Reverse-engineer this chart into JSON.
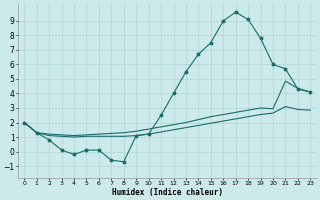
{
  "xlabel": "Humidex (Indice chaleur)",
  "background_color": "#cdeaea",
  "line_color": "#1a6b6b",
  "grid_color": "#afd4d4",
  "xlim": [
    -0.5,
    23.5
  ],
  "ylim": [
    -1.8,
    10.2
  ],
  "xticks": [
    0,
    1,
    2,
    3,
    4,
    5,
    6,
    7,
    8,
    9,
    10,
    11,
    12,
    13,
    14,
    15,
    16,
    17,
    18,
    19,
    20,
    21,
    22,
    23
  ],
  "yticks": [
    -1,
    0,
    1,
    2,
    3,
    4,
    5,
    6,
    7,
    8,
    9
  ],
  "series1_x": [
    0,
    1,
    2,
    3,
    4,
    5,
    6,
    7,
    8,
    9,
    10,
    11,
    12,
    13,
    14,
    15,
    16,
    17,
    18,
    19,
    20,
    21,
    22,
    23
  ],
  "series1_y": [
    2.0,
    1.3,
    0.8,
    0.1,
    -0.2,
    0.1,
    0.1,
    -0.6,
    -0.7,
    1.1,
    1.2,
    2.5,
    4.0,
    5.5,
    6.7,
    7.5,
    9.0,
    9.6,
    9.1,
    7.8,
    6.0,
    5.7,
    4.3,
    4.1
  ],
  "series2_x": [
    0,
    1,
    2,
    3,
    4,
    5,
    6,
    7,
    8,
    9,
    10,
    11,
    12,
    13,
    14,
    15,
    16,
    17,
    18,
    19,
    20,
    21,
    22,
    23
  ],
  "series2_y": [
    2.0,
    1.3,
    1.2,
    1.15,
    1.1,
    1.15,
    1.2,
    1.25,
    1.3,
    1.4,
    1.55,
    1.7,
    1.85,
    2.0,
    2.2,
    2.4,
    2.55,
    2.7,
    2.85,
    3.0,
    2.95,
    4.85,
    4.35,
    4.1
  ],
  "series3_x": [
    0,
    1,
    2,
    3,
    4,
    5,
    6,
    7,
    8,
    9,
    10,
    11,
    12,
    13,
    14,
    15,
    16,
    17,
    18,
    19,
    20,
    21,
    22,
    23
  ],
  "series3_y": [
    2.0,
    1.3,
    1.1,
    1.05,
    1.0,
    1.05,
    1.05,
    1.05,
    1.05,
    1.1,
    1.2,
    1.35,
    1.5,
    1.65,
    1.8,
    1.95,
    2.1,
    2.25,
    2.4,
    2.55,
    2.65,
    3.1,
    2.9,
    2.85
  ]
}
